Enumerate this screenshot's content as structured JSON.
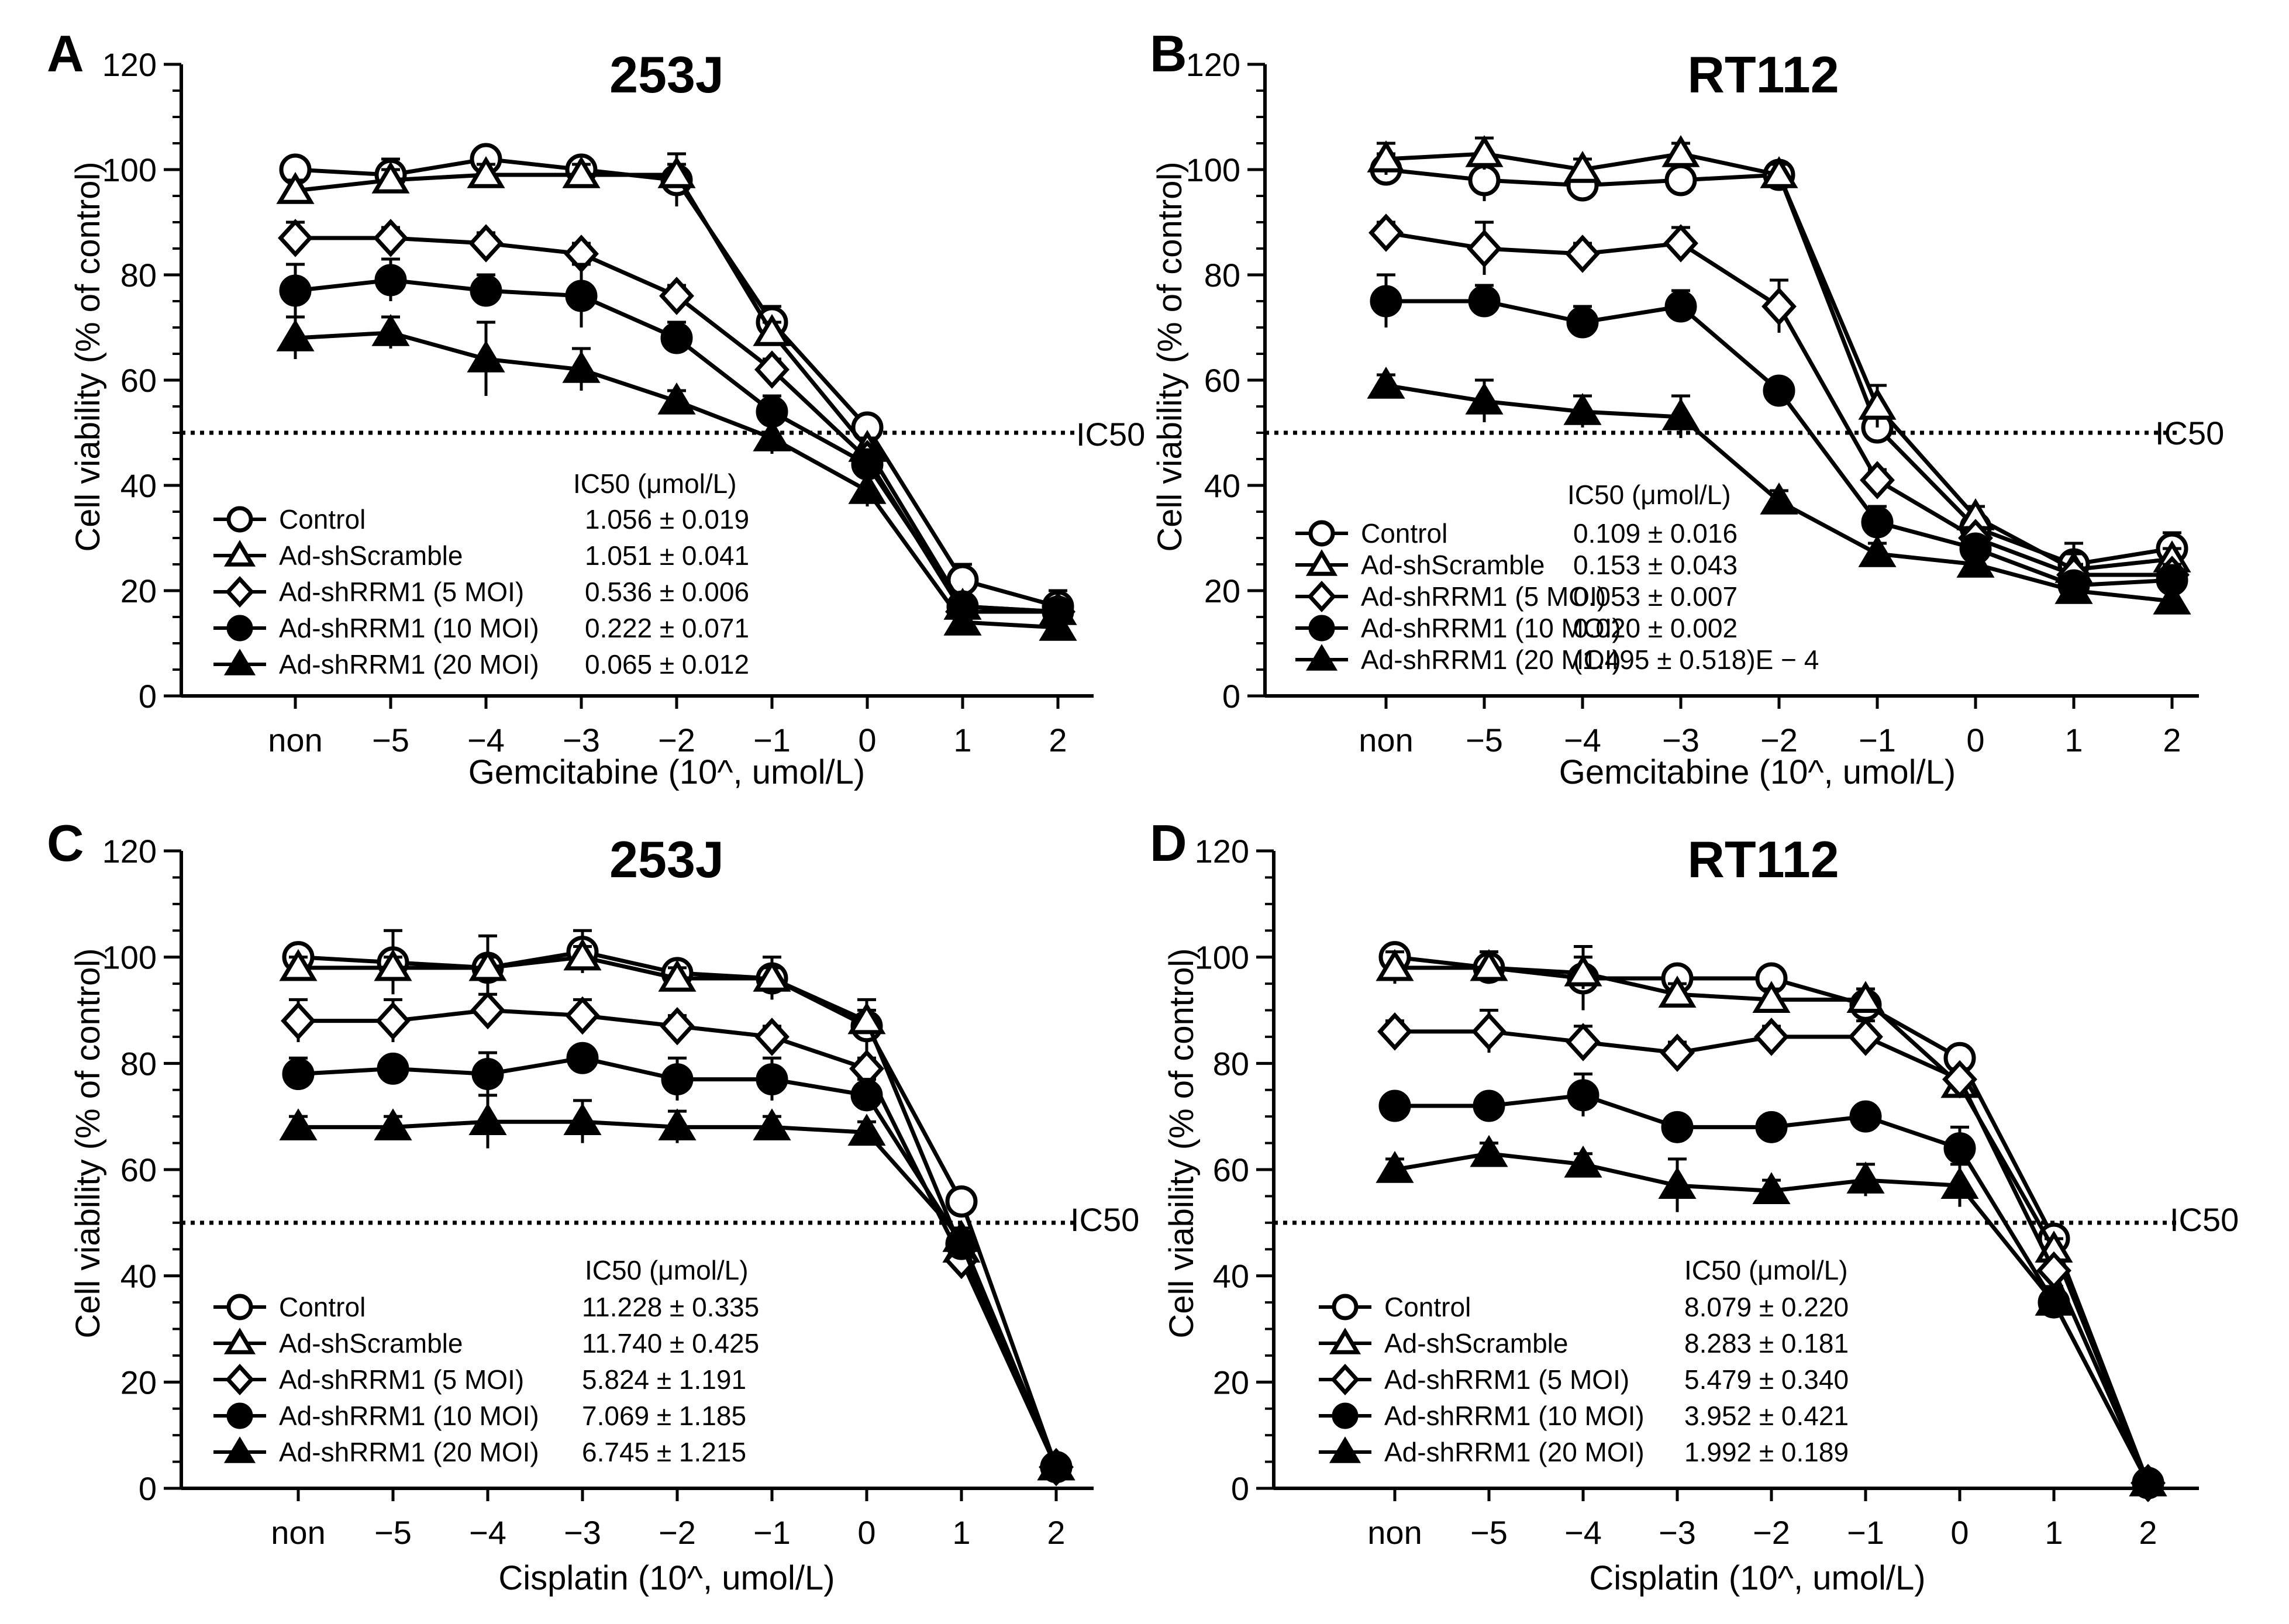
{
  "figure": {
    "panels": [
      "A",
      "B",
      "C",
      "D"
    ]
  },
  "chart_data": [
    {
      "panel": "A",
      "type": "line",
      "title": "253J",
      "xlabel": "Gemcitabine (10^, umol/L)",
      "ylabel": "Cell viability (% of control)",
      "categories": [
        "non",
        "−5",
        "−4",
        "−3",
        "−2",
        "−1",
        "0",
        "1",
        "2"
      ],
      "ylim": [
        0,
        120
      ],
      "yticks": [
        "0",
        "20",
        "40",
        "60",
        "80",
        "100",
        "120"
      ],
      "reference_line": {
        "value": 50,
        "label": "IC50"
      },
      "legend_header": "IC50 (μmol/L)",
      "series": [
        {
          "name": "Control",
          "marker": "circle-open",
          "ic50": "1.056 ± 0.019",
          "values": [
            100,
            99,
            102,
            100,
            98,
            71,
            51,
            22,
            17
          ],
          "errors": [
            2,
            3,
            2,
            2,
            5,
            3,
            2,
            3,
            3
          ]
        },
        {
          "name": "Ad-shScramble",
          "marker": "triangle-open",
          "ic50": "1.051 ± 0.041",
          "values": [
            96,
            98,
            99,
            99,
            99,
            69,
            47,
            17,
            16
          ],
          "errors": [
            2,
            2,
            2,
            2,
            2,
            2,
            2,
            2,
            2
          ]
        },
        {
          "name": "Ad-shRRM1 (5 MOI)",
          "marker": "diamond-open",
          "ic50": "0.536 ± 0.006",
          "values": [
            87,
            87,
            86,
            84,
            76,
            62,
            45,
            16,
            16
          ],
          "errors": [
            3,
            2,
            2,
            2,
            2,
            2,
            2,
            2,
            2
          ]
        },
        {
          "name": "Ad-shRRM1 (10 MOI)",
          "marker": "circle-filled",
          "ic50": "0.222 ± 0.071",
          "values": [
            77,
            79,
            77,
            76,
            68,
            54,
            44,
            17,
            16
          ],
          "errors": [
            5,
            4,
            3,
            6,
            3,
            3,
            2,
            2,
            2
          ]
        },
        {
          "name": "Ad-shRRM1 (20 MOI)",
          "marker": "triangle-filled",
          "ic50": "0.065 ± 0.012",
          "values": [
            68,
            69,
            64,
            62,
            56,
            49,
            39,
            14,
            13
          ],
          "errors": [
            4,
            3,
            7,
            4,
            2,
            3,
            3,
            2,
            2
          ]
        }
      ]
    },
    {
      "panel": "B",
      "type": "line",
      "title": "RT112",
      "xlabel": "Gemcitabine (10^, umol/L)",
      "ylabel": "Cell viability (% of control)",
      "categories": [
        "non",
        "−5",
        "−4",
        "−3",
        "−2",
        "−1",
        "0",
        "1",
        "2"
      ],
      "ylim": [
        0,
        120
      ],
      "yticks": [
        "0",
        "20",
        "40",
        "60",
        "80",
        "100",
        "120"
      ],
      "reference_line": {
        "value": 50,
        "label": "IC50"
      },
      "legend_header": "IC50 (μmol/L)",
      "series": [
        {
          "name": "Control",
          "marker": "circle-open",
          "ic50": "0.109 ± 0.016",
          "values": [
            100,
            98,
            97,
            98,
            99,
            51,
            32,
            25,
            28
          ],
          "errors": [
            3,
            4,
            3,
            3,
            2,
            3,
            2,
            4,
            3
          ]
        },
        {
          "name": "Ad-shScramble",
          "marker": "triangle-open",
          "ic50": "0.153 ± 0.043",
          "values": [
            102,
            103,
            100,
            103,
            99,
            55,
            34,
            24,
            26
          ],
          "errors": [
            3,
            3,
            2,
            2,
            2,
            4,
            2,
            3,
            2
          ]
        },
        {
          "name": "Ad-shRRM1 (5 MOI)",
          "marker": "diamond-open",
          "ic50": "0.053 ± 0.007",
          "values": [
            88,
            85,
            84,
            86,
            74,
            41,
            30,
            23,
            23
          ],
          "errors": [
            2,
            5,
            2,
            3,
            5,
            2,
            2,
            2,
            2
          ]
        },
        {
          "name": "Ad-shRRM1 (10 MOI)",
          "marker": "circle-filled",
          "ic50": "0.020 ± 0.002",
          "values": [
            75,
            75,
            71,
            74,
            58,
            33,
            28,
            21,
            22
          ],
          "errors": [
            5,
            3,
            3,
            3,
            2,
            3,
            2,
            2,
            2
          ]
        },
        {
          "name": "Ad-shRRM1 (20 MOI)",
          "marker": "triangle-filled",
          "ic50": "(1.495 ± 0.518)E − 4",
          "values": [
            59,
            56,
            54,
            53,
            37,
            27,
            25,
            20,
            18
          ],
          "errors": [
            2,
            4,
            3,
            4,
            2,
            2,
            2,
            2,
            2
          ]
        }
      ]
    },
    {
      "panel": "C",
      "type": "line",
      "title": "253J",
      "xlabel": "Cisplatin (10^, umol/L)",
      "ylabel": "Cell viability (% of control)",
      "categories": [
        "non",
        "−5",
        "−4",
        "−3",
        "−2",
        "−1",
        "0",
        "1",
        "2"
      ],
      "ylim": [
        0,
        120
      ],
      "yticks": [
        "0",
        "20",
        "40",
        "60",
        "80",
        "100",
        "120"
      ],
      "reference_line": {
        "value": 50,
        "label": "IC50"
      },
      "legend_header": "IC50 (μmol/L)",
      "series": [
        {
          "name": "Control",
          "marker": "circle-open",
          "ic50": "11.228 ± 0.335",
          "values": [
            100,
            99,
            98,
            101,
            97,
            96,
            87,
            54,
            4
          ],
          "errors": [
            2,
            6,
            6,
            4,
            2,
            4,
            5,
            2,
            2
          ]
        },
        {
          "name": "Ad-shScramble",
          "marker": "triangle-open",
          "ic50": "11.740 ± 0.425",
          "values": [
            98,
            98,
            98,
            100,
            96,
            96,
            88,
            45,
            4
          ],
          "errors": [
            2,
            2,
            2,
            2,
            2,
            2,
            2,
            2,
            2
          ]
        },
        {
          "name": "Ad-shRRM1 (5 MOI)",
          "marker": "diamond-open",
          "ic50": "5.824 ± 1.191",
          "values": [
            88,
            88,
            90,
            89,
            87,
            85,
            79,
            43,
            4
          ],
          "errors": [
            4,
            4,
            3,
            3,
            2,
            2,
            2,
            2,
            2
          ]
        },
        {
          "name": "Ad-shRRM1 (10 MOI)",
          "marker": "circle-filled",
          "ic50": "7.069 ± 1.185",
          "values": [
            78,
            79,
            78,
            81,
            77,
            77,
            74,
            46,
            4
          ],
          "errors": [
            3,
            2,
            4,
            2,
            4,
            4,
            3,
            2,
            2
          ]
        },
        {
          "name": "Ad-shRRM1 (20 MOI)",
          "marker": "triangle-filled",
          "ic50": "6.745 ± 1.215",
          "values": [
            68,
            68,
            69,
            69,
            68,
            68,
            67,
            47,
            4
          ],
          "errors": [
            2,
            2,
            5,
            4,
            3,
            2,
            2,
            2,
            2
          ]
        }
      ]
    },
    {
      "panel": "D",
      "type": "line",
      "title": "RT112",
      "xlabel": "Cisplatin (10^, umol/L)",
      "ylabel": "Cell viability (% of control)",
      "categories": [
        "non",
        "−5",
        "−4",
        "−3",
        "−2",
        "−1",
        "0",
        "1",
        "2"
      ],
      "ylim": [
        0,
        120
      ],
      "yticks": [
        "0",
        "20",
        "40",
        "60",
        "80",
        "100",
        "120"
      ],
      "reference_line": {
        "value": 50,
        "label": "IC50"
      },
      "legend_header": "IC50 (μmol/L)",
      "series": [
        {
          "name": "Control",
          "marker": "circle-open",
          "ic50": "8.079 ± 0.220",
          "values": [
            100,
            98,
            96,
            96,
            96,
            91,
            81,
            47,
            1
          ],
          "errors": [
            2,
            3,
            6,
            2,
            2,
            3,
            2,
            2,
            2
          ]
        },
        {
          "name": "Ad-shScramble",
          "marker": "triangle-open",
          "ic50": "8.283 ± 0.181",
          "values": [
            98,
            98,
            97,
            93,
            92,
            92,
            76,
            45,
            1
          ],
          "errors": [
            3,
            3,
            3,
            2,
            2,
            2,
            2,
            2,
            2
          ]
        },
        {
          "name": "Ad-shRRM1 (5 MOI)",
          "marker": "diamond-open",
          "ic50": "5.479 ± 0.340",
          "values": [
            86,
            86,
            84,
            82,
            85,
            85,
            77,
            41,
            1
          ],
          "errors": [
            2,
            4,
            3,
            2,
            2,
            3,
            2,
            2,
            2
          ]
        },
        {
          "name": "Ad-shRRM1 (10 MOI)",
          "marker": "circle-filled",
          "ic50": "3.952 ± 0.421",
          "values": [
            72,
            72,
            74,
            68,
            68,
            70,
            64,
            35,
            1
          ],
          "errors": [
            2,
            2,
            4,
            2,
            2,
            2,
            4,
            3,
            2
          ]
        },
        {
          "name": "Ad-shRRM1 (20 MOI)",
          "marker": "triangle-filled",
          "ic50": "1.992 ± 0.189",
          "values": [
            60,
            63,
            61,
            57,
            56,
            58,
            57,
            35,
            1
          ],
          "errors": [
            2,
            2,
            2,
            5,
            2,
            3,
            4,
            2,
            2
          ]
        }
      ]
    }
  ]
}
